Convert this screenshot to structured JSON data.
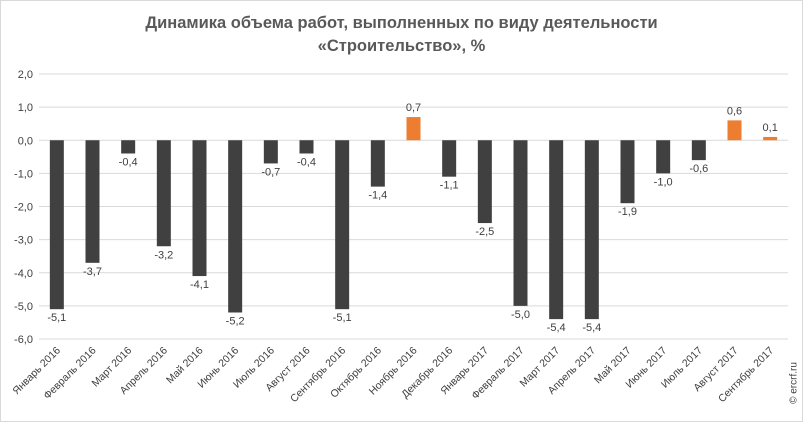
{
  "chart_data": {
    "type": "bar",
    "title": [
      "Динамика объема работ, выполненных по виду деятельности",
      "«Строительство», %"
    ],
    "xlabel": "",
    "ylabel": "",
    "ylim": [
      -6,
      2
    ],
    "yticks": [
      "-6,0",
      "-5,0",
      "-4,0",
      "-3,0",
      "-2,0",
      "-1,0",
      "0,0",
      "1,0",
      "2,0"
    ],
    "grid": true,
    "legend": "none",
    "colors": {
      "negative": "#404040",
      "positive": "#ed7d31",
      "grid": "#d9d9d9",
      "text": "#404040"
    },
    "categories": [
      "Январь 2016",
      "Февраль 2016",
      "Март 2016",
      "Апрель 2016",
      "Май 2016",
      "Июнь 2016",
      "Июль 2016",
      "Август 2016",
      "Сентябрь 2016",
      "Октябрь 2016",
      "Ноябрь 2016",
      "Декабрь 2016",
      "Январь 2017",
      "Февраль 2017",
      "Март 2017",
      "Апрель 2017",
      "Май 2017",
      "Июнь 2017",
      "Июль 2017",
      "Август 2017",
      "Сентябрь 2017"
    ],
    "values": [
      -5.1,
      -3.7,
      -0.4,
      -3.2,
      -4.1,
      -5.2,
      -0.7,
      -0.4,
      -5.1,
      -1.4,
      0.7,
      -1.1,
      -2.5,
      -5.0,
      -5.4,
      -5.4,
      -1.9,
      -1.0,
      -0.6,
      0.6,
      0.1
    ],
    "labels": [
      "-5,1",
      "-3,7",
      "-0,4",
      "-3,2",
      "-4,1",
      "-5,2",
      "-0,7",
      "-0,4",
      "-5,1",
      "-1,4",
      "0,7",
      "-1,1",
      "-2,5",
      "-5,0",
      "-5,4",
      "-5,4",
      "-1,9",
      "-1,0",
      "-0,6",
      "0,6",
      "0,1"
    ]
  },
  "watermark": "© ercrf.ru"
}
